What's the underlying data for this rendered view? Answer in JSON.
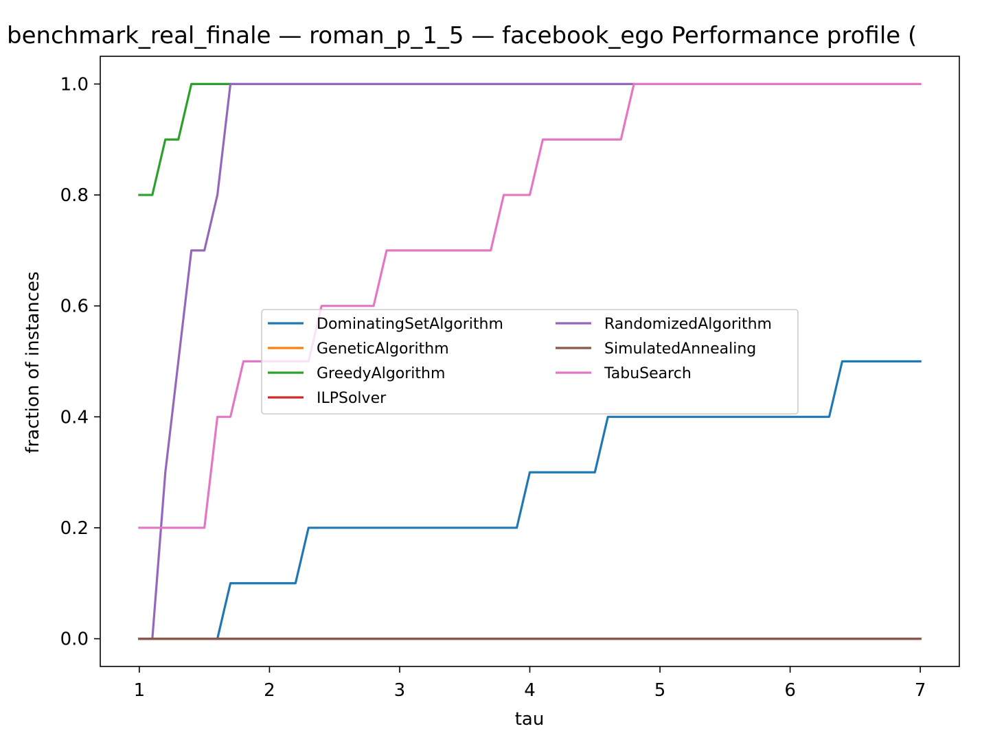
{
  "chart_data": {
    "type": "line",
    "title": "benchmark_real_finale — roman_p_1_5 — facebook_ego Performance profile (",
    "xlabel": "tau",
    "ylabel": "fraction of instances",
    "xlim": [
      0.7,
      7.3
    ],
    "ylim": [
      -0.05,
      1.05
    ],
    "xticks": [
      1,
      2,
      3,
      4,
      5,
      6,
      7
    ],
    "xtick_labels": [
      "1",
      "2",
      "3",
      "4",
      "5",
      "6",
      "7"
    ],
    "yticks": [
      0.0,
      0.2,
      0.4,
      0.6,
      0.8,
      1.0
    ],
    "ytick_labels": [
      "0.0",
      "0.2",
      "0.4",
      "0.6",
      "0.8",
      "1.0"
    ],
    "grid": false,
    "legend_position": "center",
    "legend_columns": 2,
    "series": [
      {
        "name": "DominatingSetAlgorithm",
        "color": "#1f77b4",
        "x": [
          1.0,
          1.6,
          1.7,
          2.2,
          2.3,
          3.9,
          4.0,
          4.5,
          4.6,
          6.3,
          6.4,
          7.0
        ],
        "y": [
          0.0,
          0.0,
          0.1,
          0.1,
          0.2,
          0.2,
          0.3,
          0.3,
          0.4,
          0.4,
          0.5,
          0.5
        ]
      },
      {
        "name": "GeneticAlgorithm",
        "color": "#ff7f0e",
        "x": [
          1.0,
          7.0
        ],
        "y": [
          0.0,
          0.0
        ]
      },
      {
        "name": "GreedyAlgorithm",
        "color": "#2ca02c",
        "x": [
          1.0,
          1.1,
          1.2,
          1.3,
          1.4,
          1.7
        ],
        "y": [
          0.8,
          0.8,
          0.9,
          0.9,
          1.0,
          1.0
        ]
      },
      {
        "name": "ILPSolver",
        "color": "#d62728",
        "x": [
          1.0,
          7.0
        ],
        "y": [
          0.0,
          0.0
        ]
      },
      {
        "name": "RandomizedAlgorithm",
        "color": "#9467bd",
        "x": [
          1.0,
          1.1,
          1.2,
          1.4,
          1.5,
          1.6,
          1.7,
          4.8
        ],
        "y": [
          0.0,
          0.0,
          0.3,
          0.7,
          0.7,
          0.8,
          1.0,
          1.0
        ]
      },
      {
        "name": "SimulatedAnnealing",
        "color": "#8c564b",
        "x": [
          1.0,
          7.0
        ],
        "y": [
          0.0,
          0.0
        ]
      },
      {
        "name": "TabuSearch",
        "color": "#e377c2",
        "x": [
          1.0,
          1.5,
          1.6,
          1.7,
          1.8,
          2.3,
          2.4,
          2.8,
          2.9,
          3.7,
          3.8,
          4.0,
          4.1,
          4.7,
          4.8,
          7.0
        ],
        "y": [
          0.2,
          0.2,
          0.4,
          0.4,
          0.5,
          0.5,
          0.6,
          0.6,
          0.7,
          0.7,
          0.8,
          0.8,
          0.9,
          0.9,
          1.0,
          1.0
        ]
      }
    ]
  }
}
